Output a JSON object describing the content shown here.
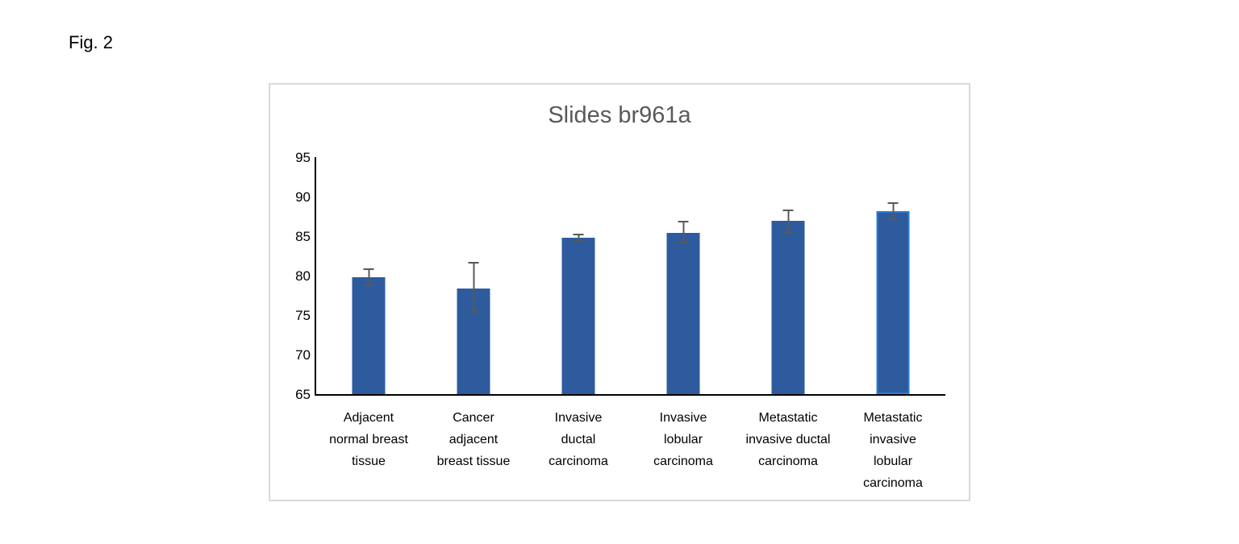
{
  "figure_label": "Fig. 2",
  "chart_data": {
    "type": "bar",
    "title": "Slides br961a",
    "categories": [
      "Adjacent normal breast tissue",
      "Cancer adjacent breast tissue",
      "Invasive ductal carcinoma",
      "Invasive lobular carcinoma",
      "Metastatic invasive ductal carcinoma",
      "Metastatic invasive lobular carcinoma"
    ],
    "category_lines": [
      [
        "Adjacent",
        "normal breast",
        "tissue"
      ],
      [
        "Cancer",
        "adjacent",
        "breast tissue"
      ],
      [
        "Invasive",
        "ductal",
        "carcinoma"
      ],
      [
        "Invasive",
        "lobular",
        "carcinoma"
      ],
      [
        "Metastatic",
        "invasive ductal",
        "carcinoma"
      ],
      [
        "Metastatic",
        "invasive",
        "lobular",
        "carcinoma"
      ]
    ],
    "values": [
      79.8,
      78.4,
      84.8,
      85.4,
      86.9,
      88.2
    ],
    "error_plus": [
      1.1,
      3.3,
      0.5,
      1.5,
      1.5,
      1.1
    ],
    "error_minus": [
      1.1,
      3.1,
      0.5,
      1.3,
      1.5,
      1.2
    ],
    "ylim": [
      65,
      95
    ],
    "yticks": [
      65,
      70,
      75,
      80,
      85,
      90,
      95
    ],
    "xlabel": "",
    "ylabel": "",
    "grid": false,
    "legend": false,
    "colors": {
      "bar_fill": "#2E5B9E",
      "last_bar_border": "#2B7CD3",
      "error_bar": "#595959",
      "axis": "#000000",
      "title_text": "#595959",
      "chart_border": "#D9D9D9"
    }
  }
}
